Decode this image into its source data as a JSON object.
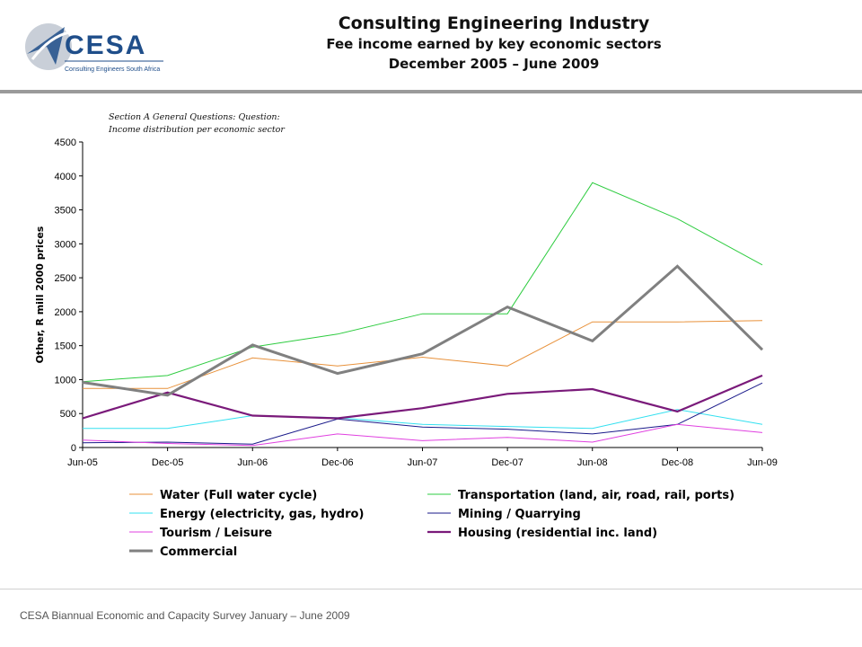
{
  "header": {
    "logo_text": "CESA",
    "logo_subtext": "Consulting Engineers South Africa",
    "title": "Consulting Engineering Industry",
    "subtitle": "Fee income earned by key economic sectors",
    "period": "December 2005 – June 2009"
  },
  "note": {
    "line1": "Section A General Questions: Question:",
    "line2": "Income distribution per economic sector"
  },
  "footer": {
    "text": "CESA Biannual Economic and Capacity Survey January – June 2009"
  },
  "colors": {
    "accent_rule": "#9a9a9a",
    "logo_blue": "#1f4e8a"
  },
  "chart_data": {
    "type": "line",
    "ylabel": "Other, R mill 2000 prices",
    "ylim": [
      0,
      4500
    ],
    "yticks": [
      0,
      500,
      1000,
      1500,
      2000,
      2500,
      3000,
      3500,
      4000,
      4500
    ],
    "categories": [
      "Jun-05",
      "Dec-05",
      "Jun-06",
      "Dec-06",
      "Jun-07",
      "Dec-07",
      "Jun-08",
      "Dec-08",
      "Jun-09"
    ],
    "grid": false,
    "legend_position": "bottom",
    "series": [
      {
        "name": "Water (Full water cycle)",
        "color": "#e8913a",
        "width": 1,
        "values": [
          870,
          870,
          1320,
          1200,
          1330,
          1200,
          1850,
          1850,
          1870
        ]
      },
      {
        "name": "Transportation (land, air, road, rail, ports)",
        "color": "#2ecc40",
        "width": 1,
        "values": [
          970,
          1060,
          1480,
          1670,
          1970,
          1970,
          3900,
          3370,
          2690
        ]
      },
      {
        "name": "Energy (electricity, gas, hydro)",
        "color": "#33e0f0",
        "width": 1,
        "values": [
          280,
          280,
          470,
          440,
          340,
          310,
          280,
          560,
          340
        ]
      },
      {
        "name": "Mining / Quarrying",
        "color": "#1a1a8a",
        "width": 1,
        "values": [
          70,
          80,
          50,
          420,
          300,
          270,
          200,
          340,
          950
        ]
      },
      {
        "name": "Tourism / Leisure",
        "color": "#e040e0",
        "width": 1,
        "values": [
          110,
          60,
          30,
          200,
          100,
          150,
          80,
          340,
          220
        ]
      },
      {
        "name": "Housing (residential inc. land)",
        "color": "#7a1a7a",
        "width": 2.2,
        "values": [
          430,
          810,
          470,
          430,
          580,
          790,
          860,
          530,
          1060
        ]
      },
      {
        "name": "Commercial",
        "color": "#808080",
        "width": 3,
        "values": [
          960,
          770,
          1510,
          1090,
          1380,
          2070,
          1570,
          2670,
          1440
        ]
      }
    ]
  }
}
